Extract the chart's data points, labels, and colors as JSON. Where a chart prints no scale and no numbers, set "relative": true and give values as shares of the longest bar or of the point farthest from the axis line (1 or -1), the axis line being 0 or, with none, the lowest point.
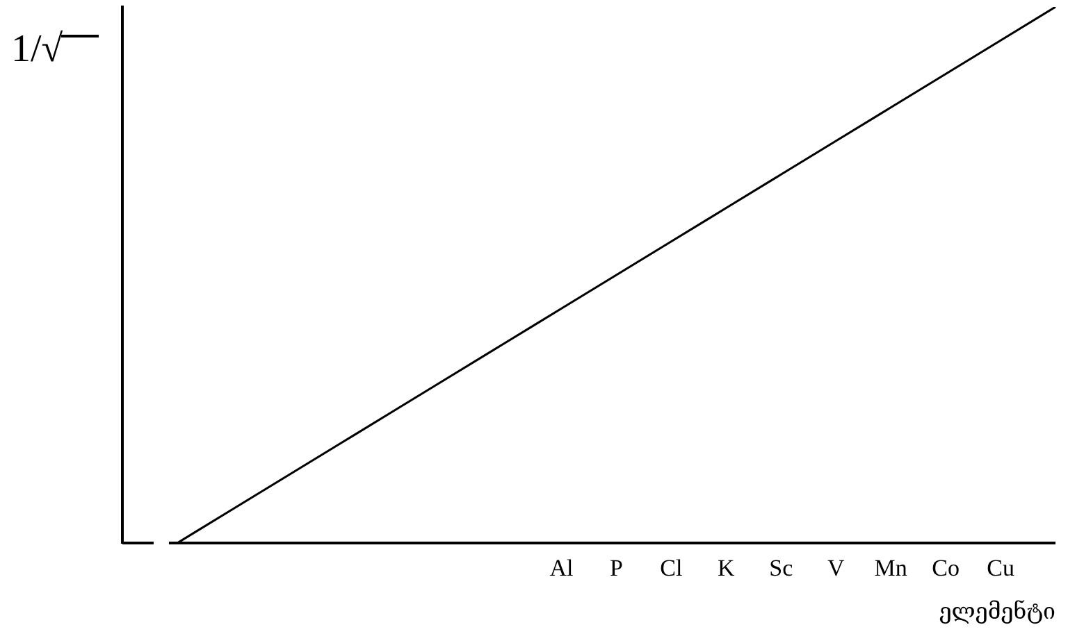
{
  "chart_data": {
    "type": "line",
    "ylabel": "1/√",
    "xlabel": "ელემენტი",
    "categories": [
      null,
      null,
      null,
      null,
      null,
      null,
      null,
      null,
      "Al",
      "P",
      "Cl",
      "K",
      "Sc",
      "V",
      "Mn",
      "Co",
      "Cu",
      null
    ],
    "values": [
      null,
      0,
      0.0625,
      0.125,
      0.1875,
      0.25,
      0.3125,
      0.375,
      0.4375,
      0.5,
      0.5625,
      0.625,
      0.6875,
      0.75,
      0.8125,
      0.875,
      0.9375,
      1
    ],
    "color": "#000000",
    "relative": true
  }
}
